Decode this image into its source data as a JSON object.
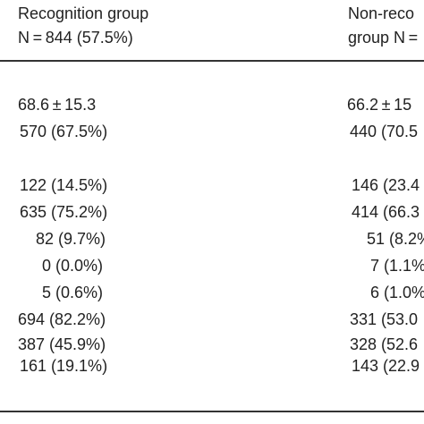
{
  "table": {
    "header": [
      [
        "Recognition group",
        "N = 844 (57.5%)"
      ],
      [
        "Non-reco",
        "group N ="
      ]
    ],
    "rows": [
      [
        "68.6 ± 15.3",
        "66.2 ± 15"
      ],
      [
        "570 (67.5%)",
        "440 (70.5"
      ],
      [
        "122 (14.5%)",
        "146 (23.4"
      ],
      [
        "635 (75.2%)",
        "414 (66.3"
      ],
      [
        "82 (9.7%)",
        "51 (8.2%"
      ],
      [
        "0 (0.0%)",
        "7 (1.1%"
      ],
      [
        "5 (0.6%)",
        "6 (1.0%"
      ],
      [
        "694 (82.2%)",
        "331 (53.0"
      ],
      [
        "387 (45.9%)",
        "328 (52.6"
      ],
      [
        "161 (19.1%)",
        "143 (22.9"
      ]
    ]
  }
}
